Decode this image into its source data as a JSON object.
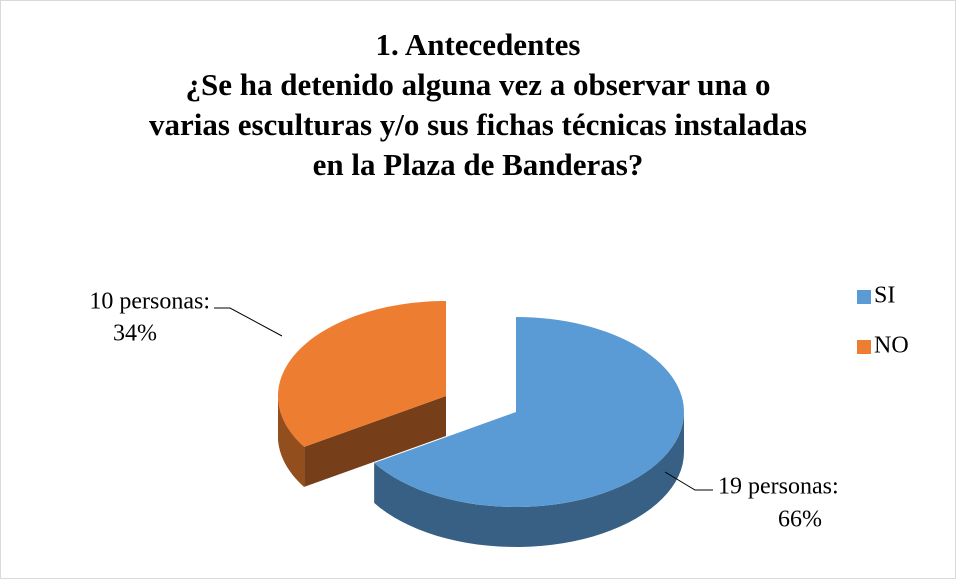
{
  "chart_data": {
    "type": "pie",
    "title": [
      "1. Antecedentes",
      "¿Se ha detenido alguna vez a observar una o",
      "varias esculturas y/o sus fichas técnicas instaladas",
      "en la Plaza de Banderas?"
    ],
    "categories": [
      "SI",
      "NO"
    ],
    "values": [
      66,
      34
    ],
    "value_labels": [
      [
        "19 personas:",
        "66%"
      ],
      [
        "10 personas:",
        "34%"
      ]
    ],
    "colors": [
      "#5b9bd5",
      "#ed7d31"
    ],
    "legend": "right"
  }
}
